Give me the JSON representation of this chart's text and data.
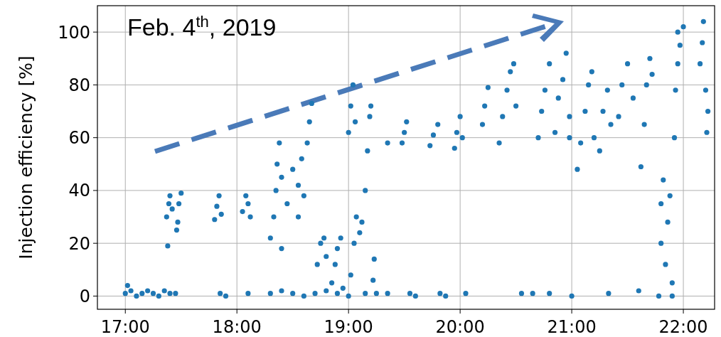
{
  "chart_data": {
    "type": "scatter",
    "ylabel": "Injection efficiency [%]",
    "annotations": [
      "Feb. 4$^{th}$, 2019"
    ],
    "xlim": [
      16.75,
      22.28
    ],
    "ylim": [
      -5,
      110
    ],
    "xticks": [
      {
        "value": 17,
        "label": "17:00"
      },
      {
        "value": 18,
        "label": "18:00"
      },
      {
        "value": 19,
        "label": "19:00"
      },
      {
        "value": 20,
        "label": "20:00"
      },
      {
        "value": 21,
        "label": "21:00"
      },
      {
        "value": 22,
        "label": "22:00"
      }
    ],
    "yticks": [
      0,
      20,
      40,
      60,
      80,
      100
    ],
    "grid": true,
    "marker": "circle",
    "series": [
      {
        "color": "#1f77b4",
        "x": [
          17.0,
          17.05,
          17.1,
          17.15,
          17.2,
          17.25,
          17.3,
          17.35,
          17.4,
          17.45,
          17.02,
          17.38,
          17.37,
          17.39,
          17.4,
          17.42,
          17.47,
          17.48,
          17.5,
          17.46,
          17.8,
          17.82,
          17.84,
          17.86,
          17.85,
          17.9,
          18.05,
          18.08,
          18.1,
          18.12,
          18.1,
          18.3,
          18.33,
          18.35,
          18.36,
          18.38,
          18.4,
          18.4,
          18.3,
          18.4,
          18.45,
          18.5,
          18.55,
          18.58,
          18.6,
          18.55,
          18.5,
          18.6,
          18.63,
          18.65,
          18.67,
          18.72,
          18.75,
          18.78,
          18.8,
          18.7,
          18.8,
          18.85,
          18.88,
          18.9,
          18.93,
          18.9,
          18.95,
          19.0,
          19.02,
          19.05,
          19.07,
          19.1,
          19.0,
          19.02,
          19.04,
          19.06,
          19.12,
          19.15,
          19.17,
          19.19,
          19.2,
          19.15,
          19.22,
          19.23,
          19.25,
          19.35,
          19.35,
          19.48,
          19.5,
          19.52,
          19.55,
          19.6,
          19.73,
          19.76,
          19.8,
          19.82,
          19.87,
          19.95,
          19.97,
          20.0,
          20.02,
          20.05,
          20.2,
          20.22,
          20.25,
          20.35,
          20.38,
          20.42,
          20.45,
          20.48,
          20.5,
          20.55,
          20.65,
          20.7,
          20.73,
          20.76,
          20.8,
          20.8,
          20.85,
          20.88,
          20.92,
          20.95,
          20.98,
          20.98,
          21.0,
          21.05,
          21.08,
          21.12,
          21.15,
          21.18,
          21.2,
          21.25,
          21.28,
          21.32,
          21.35,
          21.33,
          21.42,
          21.45,
          21.5,
          21.55,
          21.6,
          21.62,
          21.65,
          21.67,
          21.7,
          21.72,
          21.78,
          21.8,
          21.8,
          21.82,
          21.84,
          21.86,
          21.88,
          21.9,
          21.9,
          21.92,
          21.93,
          21.95,
          21.97,
          22.0,
          21.95,
          22.15,
          22.17,
          22.18,
          22.2,
          22.22,
          22.21
        ],
        "values": [
          1,
          2,
          0,
          1,
          2,
          1,
          0,
          2,
          1,
          1,
          4,
          19,
          30,
          35,
          38,
          33,
          28,
          35,
          39,
          25,
          29,
          34,
          38,
          31,
          1,
          0,
          32,
          38,
          35,
          30,
          1,
          22,
          30,
          40,
          50,
          58,
          45,
          18,
          1,
          2,
          35,
          48,
          42,
          52,
          38,
          30,
          1,
          0,
          58,
          66,
          73,
          12,
          20,
          22,
          15,
          1,
          2,
          5,
          12,
          18,
          22,
          1,
          3,
          0,
          8,
          20,
          30,
          24,
          62,
          72,
          80,
          66,
          28,
          40,
          55,
          68,
          72,
          1,
          6,
          14,
          1,
          58,
          1,
          58,
          62,
          66,
          1,
          0,
          57,
          61,
          65,
          1,
          0,
          56,
          62,
          68,
          60,
          1,
          65,
          72,
          79,
          58,
          68,
          78,
          85,
          88,
          72,
          1,
          1,
          60,
          70,
          78,
          88,
          1,
          62,
          75,
          82,
          92,
          68,
          60,
          0,
          48,
          58,
          70,
          80,
          85,
          60,
          55,
          70,
          78,
          65,
          1,
          68,
          80,
          88,
          75,
          2,
          49,
          65,
          80,
          90,
          84,
          0,
          20,
          35,
          44,
          12,
          28,
          38,
          0,
          5,
          60,
          78,
          88,
          95,
          102,
          100,
          88,
          96,
          104,
          78,
          70,
          62
        ]
      }
    ]
  }
}
